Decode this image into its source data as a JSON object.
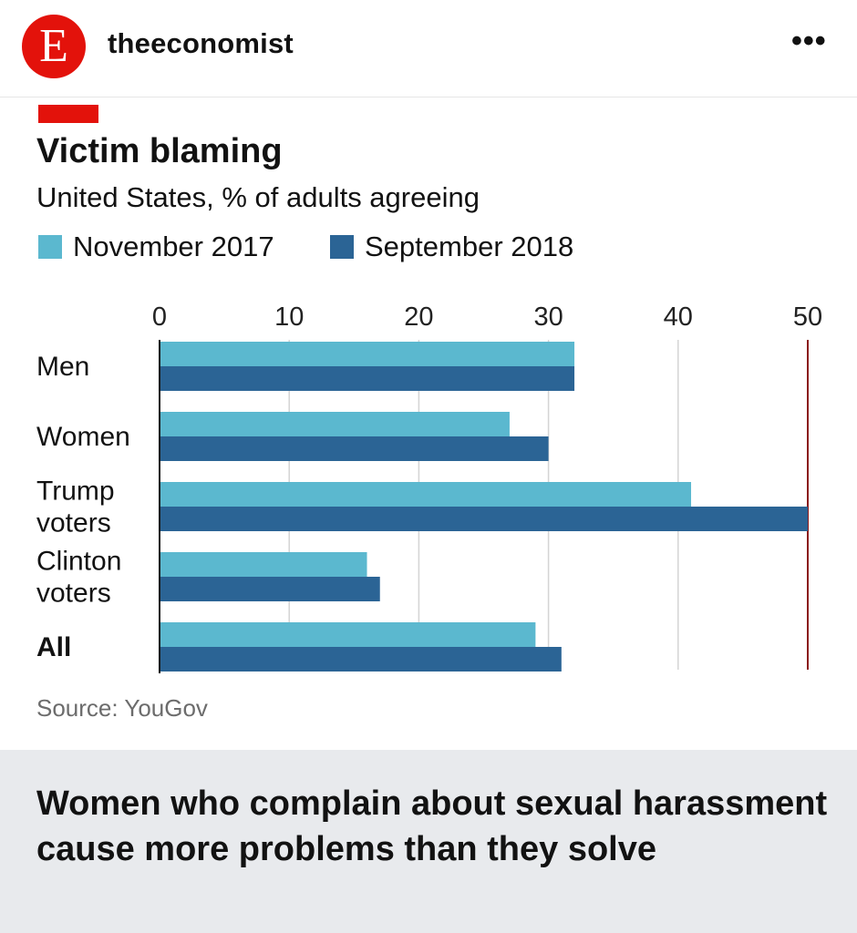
{
  "post": {
    "account_initial": "E",
    "account_name": "theeconomist",
    "more_label": "•••"
  },
  "chart_data": {
    "type": "bar",
    "orientation": "horizontal",
    "title": "Victim blaming",
    "subtitle": "United States, % of adults agreeing",
    "categories": [
      "Men",
      "Women",
      "Trump voters",
      "Clinton voters",
      "All"
    ],
    "category_labels": [
      [
        "Men"
      ],
      [
        "Women"
      ],
      [
        "Trump",
        "voters"
      ],
      [
        "Clinton",
        "voters"
      ],
      [
        "All"
      ]
    ],
    "series": [
      {
        "name": "November 2017",
        "color": "#5bb8cf",
        "values": [
          32,
          27,
          41,
          16,
          29
        ]
      },
      {
        "name": "September 2018",
        "color": "#2b6495",
        "values": [
          32,
          30,
          50,
          17,
          31
        ]
      }
    ],
    "x_ticks": [
      0,
      10,
      20,
      30,
      40,
      50
    ],
    "xlim": [
      0,
      50
    ],
    "grid": true,
    "highlight_line": {
      "value": 50,
      "color": "#8b1a1a"
    },
    "legend_position": "top-left",
    "source": "Source: YouGov"
  },
  "caption": {
    "text": "Women who complain about sexual harassment cause more problems than they solve"
  }
}
